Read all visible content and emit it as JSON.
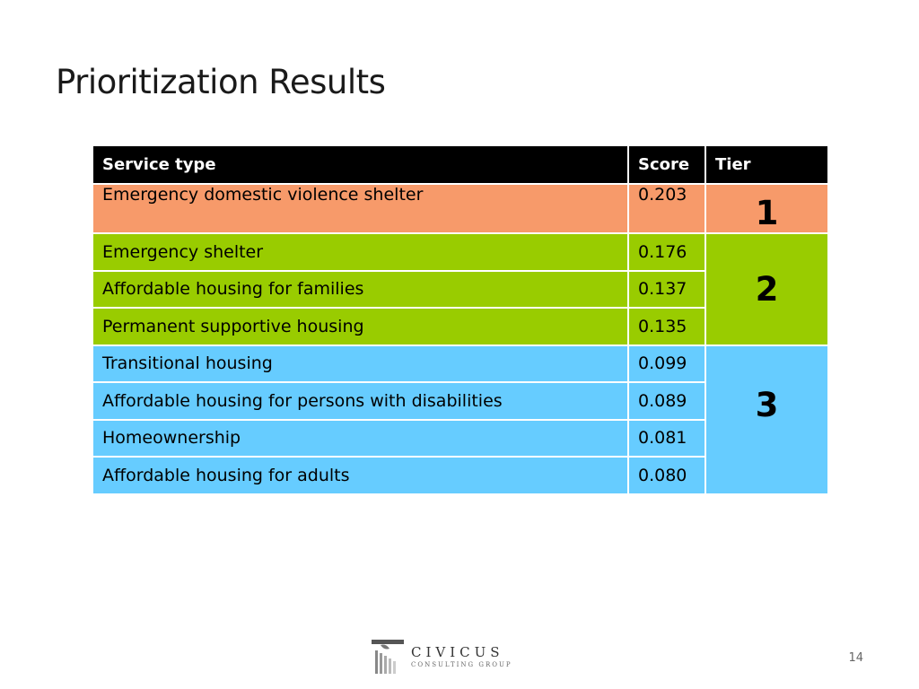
{
  "slide": {
    "title": "Prioritization Results",
    "page_number": "14"
  },
  "table": {
    "headers": {
      "service": "Service type",
      "score": "Score",
      "tier": "Tier"
    },
    "rows": [
      {
        "service": "Emergency domestic violence shelter",
        "score": "0.203"
      },
      {
        "service": "Emergency shelter",
        "score": "0.176"
      },
      {
        "service": "Affordable housing for families",
        "score": "0.137"
      },
      {
        "service": "Permanent supportive housing",
        "score": "0.135"
      },
      {
        "service": "Transitional housing",
        "score": "0.099"
      },
      {
        "service": "Affordable housing for persons with disabilities",
        "score": "0.089"
      },
      {
        "service": "Homeownership",
        "score": "0.081"
      },
      {
        "service": "Affordable housing for adults",
        "score": "0.080"
      }
    ],
    "tiers": [
      "1",
      "2",
      "3"
    ],
    "colors": {
      "tier1": "#f79a6a",
      "tier2": "#99cc00",
      "tier3": "#66ccff",
      "header": "#000000"
    }
  },
  "logo": {
    "name": "CIVICUS",
    "subtitle": "CONSULTING GROUP"
  }
}
